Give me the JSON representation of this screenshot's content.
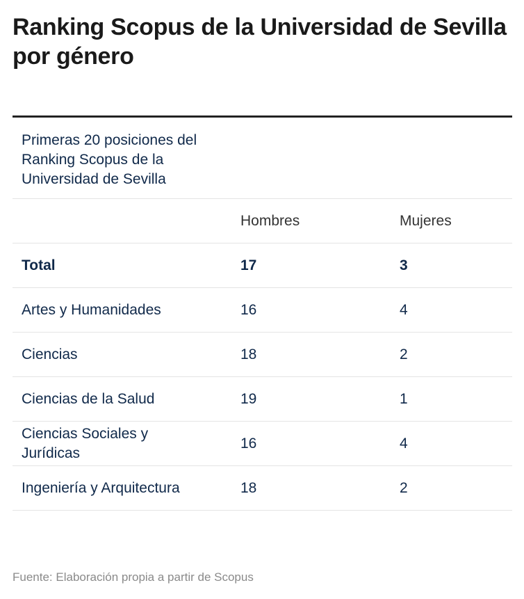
{
  "header": {
    "title": "Ranking Scopus de la Universidad de Sevilla por género"
  },
  "table": {
    "caption": "Primeras 20 posiciones del Ranking Scopus de la Universidad de Sevilla",
    "columns": [
      "Hombres",
      "Mujeres"
    ],
    "rows": [
      [
        "Total",
        17,
        3
      ],
      [
        "Artes y Humanidades",
        16,
        4
      ],
      [
        "Ciencias",
        18,
        2
      ],
      [
        "Ciencias de la Salud",
        19,
        1
      ],
      [
        "Ciencias Sociales y Jurídicas",
        16,
        4
      ],
      [
        "Ingeniería y Arquitectura",
        18,
        2
      ]
    ]
  },
  "footer": {
    "source": "Fuente: Elaboración propia a partir de Scopus"
  }
}
